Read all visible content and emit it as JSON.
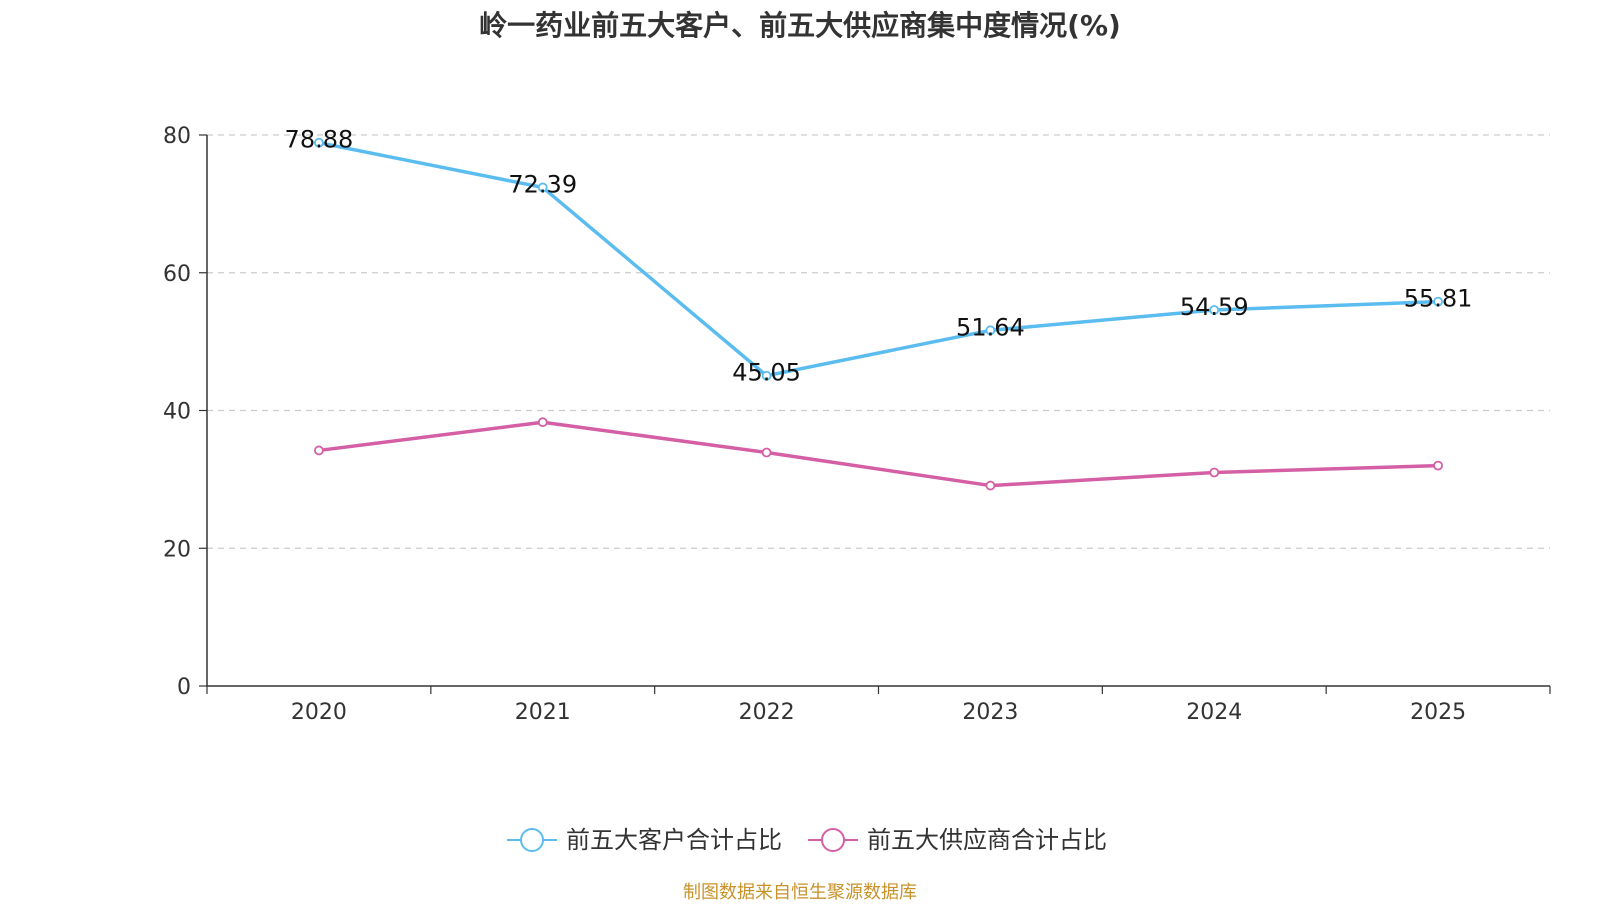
{
  "title": "岭一药业前五大客户、前五大供应商集中度情况(%)",
  "source": "制图数据来自恒生聚源数据库",
  "colors": {
    "customers": "#5bbcf0",
    "suppliers": "#d45fa5",
    "grid": "#cccccc",
    "axis": "#333333"
  },
  "chart_data": {
    "type": "line",
    "title": "岭一药业前五大客户、前五大供应商集中度情况(%)",
    "categories": [
      "2020",
      "2021",
      "2022",
      "2023",
      "2024",
      "2025"
    ],
    "ylim": [
      0,
      80
    ],
    "yticks": [
      0,
      20,
      40,
      60,
      80
    ],
    "ytick_labels": [
      "0",
      "20",
      "40",
      "60",
      "80"
    ],
    "grid": true,
    "legend_position": "bottom",
    "series": [
      {
        "name": "前五大客户合计占比",
        "values": [
          78.88,
          72.39,
          45.05,
          51.64,
          54.59,
          55.81
        ],
        "labels": [
          "78.88",
          "72.39",
          "45.05",
          "51.64",
          "54.59",
          "55.81"
        ],
        "show_labels": true
      },
      {
        "name": "前五大供应商合计占比",
        "values": [
          34.2,
          38.3,
          33.9,
          29.1,
          31.0,
          32.0
        ],
        "show_labels": false
      }
    ]
  }
}
